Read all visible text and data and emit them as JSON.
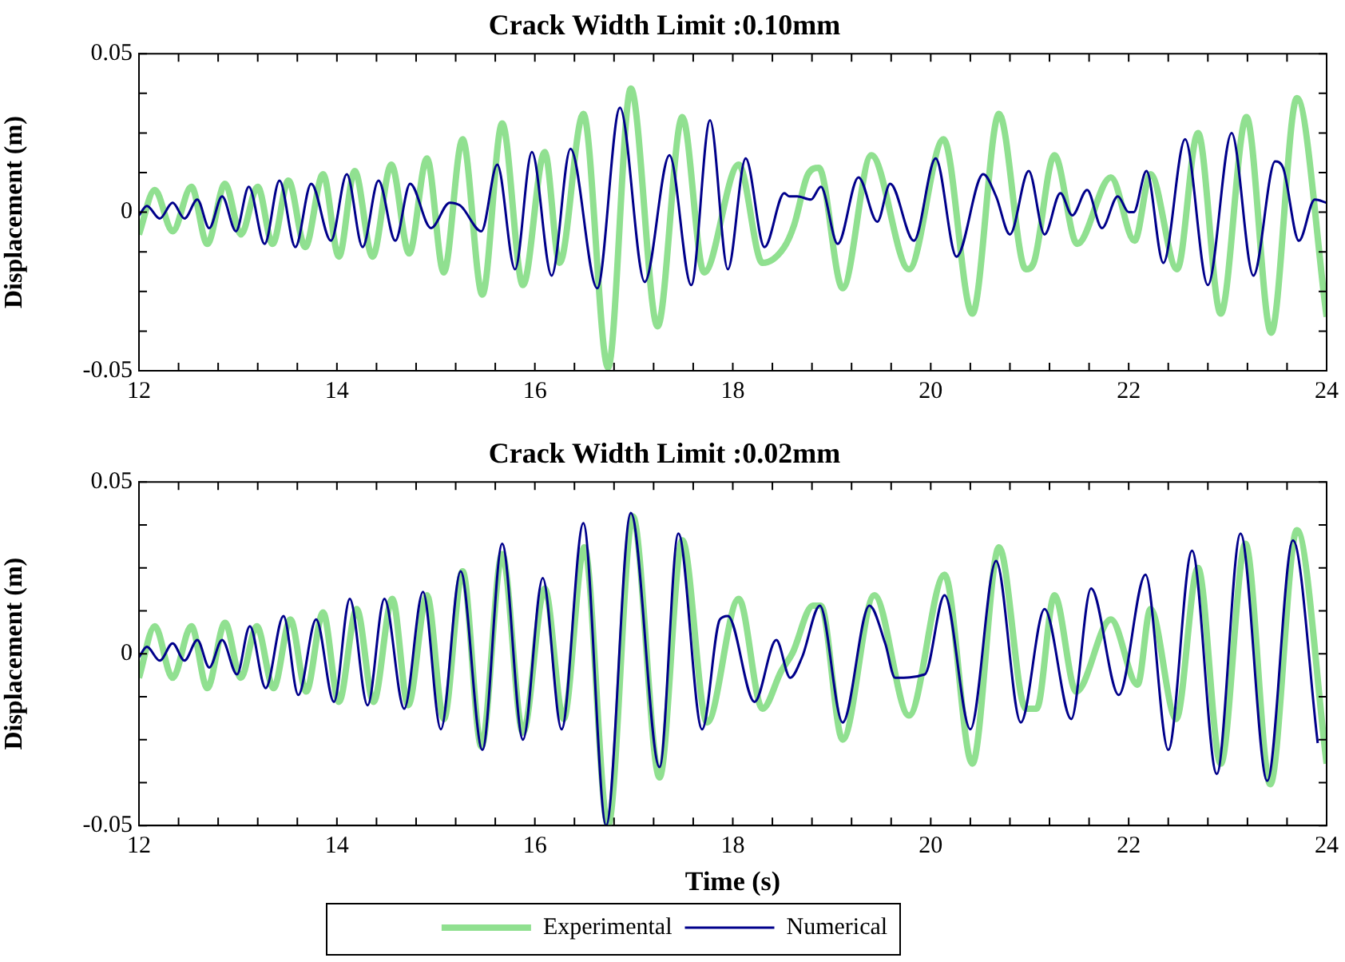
{
  "chart_data": [
    {
      "type": "line",
      "title": "Crack Width Limit :0.10mm",
      "ylabel": "Displacement (m)",
      "xlim": [
        12,
        24
      ],
      "ylim": [
        -0.05,
        0.05
      ],
      "xticks": [
        12,
        {
          "value": 12.4,
          "label": null
        },
        {
          "value": 12.8,
          "label": null
        },
        {
          "value": 13.2,
          "label": null
        },
        {
          "value": 13.6,
          "label": null
        },
        14,
        {
          "value": 14.4,
          "label": null
        },
        {
          "value": 14.8,
          "label": null
        },
        {
          "value": 15.2,
          "label": null
        },
        {
          "value": 15.6,
          "label": null
        },
        16,
        {
          "value": 16.4,
          "label": null
        },
        {
          "value": 16.8,
          "label": null
        },
        {
          "value": 17.2,
          "label": null
        },
        {
          "value": 17.6,
          "label": null
        },
        18,
        {
          "value": 18.4,
          "label": null
        },
        {
          "value": 18.8,
          "label": null
        },
        {
          "value": 19.2,
          "label": null
        },
        {
          "value": 19.6,
          "label": null
        },
        20,
        {
          "value": 20.4,
          "label": null
        },
        {
          "value": 20.8,
          "label": null
        },
        {
          "value": 21.2,
          "label": null
        },
        {
          "value": 21.6,
          "label": null
        },
        22,
        {
          "value": 22.4,
          "label": null
        },
        {
          "value": 22.8,
          "label": null
        },
        {
          "value": 23.2,
          "label": null
        },
        {
          "value": 23.6,
          "label": null
        },
        24
      ],
      "yticks": [
        -0.05,
        {
          "value": -0.0375,
          "label": null
        },
        {
          "value": -0.025,
          "label": null
        },
        {
          "value": -0.0125,
          "label": null
        },
        0,
        {
          "value": 0.0125,
          "label": null
        },
        {
          "value": 0.025,
          "label": null
        },
        {
          "value": 0.0375,
          "label": null
        },
        0.05
      ],
      "grid": false,
      "legend": false,
      "series": [
        {
          "color": "#90e090",
          "x": [
            12,
            12.16,
            12.34,
            12.53,
            12.69,
            12.87,
            13.03,
            13.2,
            13.35,
            13.51,
            13.68,
            13.86,
            14.02,
            14.18,
            14.36,
            14.55,
            14.73,
            14.91,
            15.08,
            15.27,
            15.47,
            15.67,
            15.88,
            16.1,
            16.25,
            16.49,
            16.74,
            16.97,
            17.24,
            17.49,
            17.71,
            18.06,
            18.3,
            18.52,
            18.62,
            18.76,
            18.87,
            19.11,
            19.4,
            19.78,
            20.13,
            20.42,
            20.69,
            20.96,
            21.04,
            21.25,
            21.48,
            21.82,
            22.06,
            22.22,
            22.49,
            22.7,
            22.93,
            23.19,
            23.44,
            23.7,
            24
          ],
          "values": [
            -0.007,
            0.007,
            -0.006,
            0.008,
            -0.01,
            0.009,
            -0.007,
            0.008,
            -0.01,
            0.01,
            -0.011,
            0.012,
            -0.014,
            0.013,
            -0.014,
            0.015,
            -0.013,
            0.017,
            -0.019,
            0.023,
            -0.026,
            0.028,
            -0.023,
            0.019,
            -0.016,
            0.031,
            -0.049,
            0.039,
            -0.036,
            0.03,
            -0.019,
            0.015,
            -0.016,
            -0.011,
            -0.004,
            0.012,
            0.014,
            -0.024,
            0.018,
            -0.018,
            0.023,
            -0.032,
            0.031,
            -0.018,
            -0.016,
            0.018,
            -0.01,
            0.011,
            -0.009,
            0.012,
            -0.018,
            0.025,
            -0.032,
            0.03,
            -0.038,
            0.036,
            -0.033
          ]
        },
        {
          "color": "#00008b",
          "x": [
            12,
            12.08,
            12.21,
            12.34,
            12.46,
            12.59,
            12.71,
            12.84,
            12.98,
            13.11,
            13.27,
            13.42,
            13.58,
            13.74,
            13.94,
            14.1,
            14.26,
            14.42,
            14.59,
            14.74,
            14.95,
            15.14,
            15.25,
            15.46,
            15.62,
            15.8,
            15.97,
            16.17,
            16.36,
            16.63,
            16.86,
            17.11,
            17.36,
            17.58,
            17.77,
            17.95,
            18.13,
            18.32,
            18.52,
            18.57,
            18.65,
            18.79,
            18.89,
            19.06,
            19.27,
            19.46,
            19.59,
            19.83,
            20.05,
            20.26,
            20.53,
            20.66,
            20.8,
            20.99,
            21.15,
            21.31,
            21.43,
            21.58,
            21.73,
            21.89,
            22,
            22.05,
            22.18,
            22.35,
            22.57,
            22.8,
            23.04,
            23.26,
            23.48,
            23.56,
            23.72,
            23.88,
            24
          ],
          "values": [
            -0.001,
            0.002,
            -0.002,
            0.003,
            -0.002,
            0.004,
            -0.005,
            0.005,
            -0.006,
            0.008,
            -0.01,
            0.01,
            -0.011,
            0.009,
            -0.009,
            0.012,
            -0.011,
            0.01,
            -0.009,
            0.009,
            -0.005,
            0.003,
            0.002,
            -0.006,
            0.015,
            -0.018,
            0.019,
            -0.02,
            0.02,
            -0.024,
            0.033,
            -0.022,
            0.018,
            -0.023,
            0.029,
            -0.018,
            0.017,
            -0.011,
            0.006,
            0.005,
            0.005,
            0.004,
            0.008,
            -0.01,
            0.011,
            -0.003,
            0.009,
            -0.009,
            0.017,
            -0.014,
            0.012,
            0.005,
            -0.007,
            0.013,
            -0.007,
            0.006,
            -0.001,
            0.007,
            -0.005,
            0.005,
            0,
            0,
            0.013,
            -0.016,
            0.023,
            -0.023,
            0.025,
            -0.02,
            0.016,
            0.014,
            -0.009,
            0.004,
            0.003
          ]
        }
      ]
    },
    {
      "type": "line",
      "title": "Crack Width Limit :0.02mm",
      "xlabel": "Time (s)",
      "ylabel": "Displacement (m)",
      "xlim": [
        12,
        24
      ],
      "ylim": [
        -0.05,
        0.05
      ],
      "xticks": [
        12,
        {
          "value": 12.4,
          "label": null
        },
        {
          "value": 12.8,
          "label": null
        },
        {
          "value": 13.2,
          "label": null
        },
        {
          "value": 13.6,
          "label": null
        },
        14,
        {
          "value": 14.4,
          "label": null
        },
        {
          "value": 14.8,
          "label": null
        },
        {
          "value": 15.2,
          "label": null
        },
        {
          "value": 15.6,
          "label": null
        },
        16,
        {
          "value": 16.4,
          "label": null
        },
        {
          "value": 16.8,
          "label": null
        },
        {
          "value": 17.2,
          "label": null
        },
        {
          "value": 17.6,
          "label": null
        },
        18,
        {
          "value": 18.4,
          "label": null
        },
        {
          "value": 18.8,
          "label": null
        },
        {
          "value": 19.2,
          "label": null
        },
        {
          "value": 19.6,
          "label": null
        },
        20,
        {
          "value": 20.4,
          "label": null
        },
        {
          "value": 20.8,
          "label": null
        },
        {
          "value": 21.2,
          "label": null
        },
        {
          "value": 21.6,
          "label": null
        },
        22,
        {
          "value": 22.4,
          "label": null
        },
        {
          "value": 22.8,
          "label": null
        },
        {
          "value": 23.2,
          "label": null
        },
        {
          "value": 23.6,
          "label": null
        },
        24
      ],
      "yticks": [
        -0.05,
        {
          "value": -0.0375,
          "label": null
        },
        {
          "value": -0.025,
          "label": null
        },
        {
          "value": -0.0125,
          "label": null
        },
        0,
        {
          "value": 0.0125,
          "label": null
        },
        {
          "value": 0.025,
          "label": null
        },
        {
          "value": 0.0375,
          "label": null
        },
        0.05
      ],
      "grid": false,
      "legend": "bottom",
      "series": [
        {
          "name": "Experimental",
          "color": "#90e090",
          "x": [
            12,
            12.16,
            12.34,
            12.53,
            12.69,
            12.87,
            13.03,
            13.19,
            13.36,
            13.53,
            13.69,
            13.86,
            14.02,
            14.2,
            14.37,
            14.56,
            14.72,
            14.91,
            15.08,
            15.27,
            15.46,
            15.67,
            15.88,
            16.1,
            16.29,
            16.5,
            16.74,
            16.99,
            17.26,
            17.49,
            17.74,
            18.06,
            18.3,
            18.49,
            18.6,
            18.81,
            18.89,
            19.11,
            19.43,
            19.78,
            20.14,
            20.42,
            20.69,
            20.96,
            21.07,
            21.25,
            21.47,
            21.82,
            22.09,
            22.22,
            22.48,
            22.7,
            22.93,
            23.18,
            23.43,
            23.7,
            24
          ],
          "values": [
            -0.007,
            0.008,
            -0.007,
            0.008,
            -0.01,
            0.009,
            -0.007,
            0.008,
            -0.01,
            0.01,
            -0.011,
            0.012,
            -0.014,
            0.013,
            -0.014,
            0.016,
            -0.015,
            0.017,
            -0.019,
            0.024,
            -0.027,
            0.029,
            -0.023,
            0.019,
            -0.019,
            0.031,
            -0.05,
            0.04,
            -0.036,
            0.033,
            -0.02,
            0.016,
            -0.016,
            -0.005,
            0,
            0.014,
            0.014,
            -0.025,
            0.017,
            -0.018,
            0.023,
            -0.032,
            0.031,
            -0.016,
            -0.016,
            0.017,
            -0.011,
            0.01,
            -0.009,
            0.013,
            -0.019,
            0.025,
            -0.032,
            0.032,
            -0.038,
            0.036,
            -0.032
          ]
        },
        {
          "name": "Numerical",
          "color": "#00008b",
          "x": [
            12,
            12.08,
            12.21,
            12.34,
            12.46,
            12.59,
            12.71,
            12.84,
            12.99,
            13.12,
            13.28,
            13.46,
            13.61,
            13.79,
            13.97,
            14.13,
            14.31,
            14.48,
            14.68,
            14.87,
            15.05,
            15.25,
            15.47,
            15.67,
            15.88,
            16.08,
            16.27,
            16.49,
            16.72,
            16.97,
            17.26,
            17.45,
            17.69,
            17.87,
            17.95,
            18.22,
            18.44,
            18.58,
            18.7,
            18.88,
            19.11,
            19.38,
            19.54,
            19.64,
            19.94,
            20.14,
            20.4,
            20.66,
            20.91,
            21.15,
            21.42,
            21.62,
            21.9,
            22.17,
            22.4,
            22.64,
            22.89,
            23.13,
            23.4,
            23.66,
            23.91
          ],
          "values": [
            -0.001,
            0.002,
            -0.002,
            0.003,
            -0.002,
            0.004,
            -0.004,
            0.004,
            -0.006,
            0.008,
            -0.01,
            0.011,
            -0.012,
            0.01,
            -0.014,
            0.016,
            -0.015,
            0.016,
            -0.016,
            0.018,
            -0.022,
            0.024,
            -0.028,
            0.032,
            -0.025,
            0.022,
            -0.022,
            0.038,
            -0.05,
            0.041,
            -0.033,
            0.035,
            -0.022,
            0.01,
            0.011,
            -0.014,
            0.004,
            -0.007,
            -0.001,
            0.014,
            -0.02,
            0.014,
            0.003,
            -0.007,
            -0.006,
            0.017,
            -0.022,
            0.027,
            -0.02,
            0.013,
            -0.019,
            0.019,
            -0.012,
            0.023,
            -0.028,
            0.03,
            -0.035,
            0.035,
            -0.037,
            0.033,
            -0.026
          ]
        }
      ]
    }
  ]
}
